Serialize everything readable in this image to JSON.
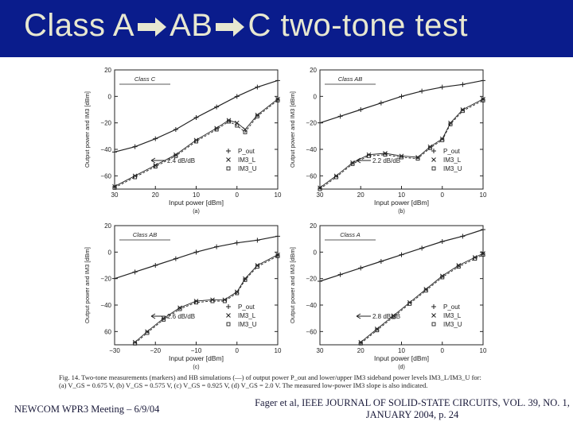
{
  "slide": {
    "title_part1": "Class A",
    "title_part2": "AB",
    "title_part3": "C two-tone test",
    "footer_left": "NEWCOM WPR3 Meeting – 6/9/04",
    "footer_right_line1": "Fager et al, IEEE JOURNAL OF SOLID-STATE CIRCUITS, VOL. 39, NO. 1,",
    "footer_right_line2": "JANUARY 2004, p. 24",
    "caption_line1": "Fig. 14. Two-tone measurements (markers) and HB simulations (—) of output power P_out and lower/upper IM3 sideband power levels IM3_L/IM3_U for:",
    "caption_line2": "(a) V_GS = 0.675 V, (b) V_GS = 0.575 V, (c) V_GS = 0.925 V, (d) V_GS = 2.0 V. The measured low-power IM3 slope is also indicated.",
    "colors": {
      "title_bg": "#0a1c8c",
      "title_fg": "#e8e8d0"
    }
  },
  "chart_data": [
    {
      "type": "line",
      "panel_label": "(a)",
      "inset_label": "Class C",
      "slope_label": "2.4 dB/dB",
      "xlabel": "Input power [dBm]",
      "ylabel": "Output power and IM3 [dBm]",
      "xlim": [
        -30,
        10
      ],
      "ylim": [
        -70,
        20
      ],
      "xticks": [
        "30",
        "20",
        "10",
        "0",
        "10"
      ],
      "yticks": [
        "20",
        "0",
        "−20",
        "−40",
        "−60"
      ],
      "legend": [
        "P_out",
        "IM3_L",
        "IM3_U"
      ],
      "series": [
        {
          "name": "P_out",
          "x": [
            -30,
            -25,
            -20,
            -15,
            -10,
            -5,
            0,
            5,
            10
          ],
          "y": [
            -42,
            -38,
            -32,
            -25,
            -16,
            -8,
            0,
            7,
            12
          ]
        },
        {
          "name": "IM3_L",
          "x": [
            -30,
            -25,
            -20,
            -15,
            -10,
            -5,
            -2,
            0,
            2,
            5,
            10
          ],
          "y": [
            -68,
            -60,
            -52,
            -44,
            -33,
            -24,
            -18,
            -20,
            -25,
            -14,
            -2
          ]
        },
        {
          "name": "IM3_U",
          "x": [
            -30,
            -25,
            -20,
            -15,
            -10,
            -5,
            -2,
            0,
            2,
            5,
            10
          ],
          "y": [
            -69,
            -61,
            -53,
            -45,
            -34,
            -25,
            -19,
            -22,
            -27,
            -15,
            -3
          ]
        }
      ]
    },
    {
      "type": "line",
      "panel_label": "(b)",
      "inset_label": "Class AB",
      "slope_label": "2.2 dB/dB",
      "xlabel": "Input power [dBm]",
      "ylabel": "Output power and IM3 [dBm]",
      "xlim": [
        -30,
        10
      ],
      "ylim": [
        -70,
        20
      ],
      "xticks": [
        "30",
        "20",
        "10",
        "0",
        "10"
      ],
      "yticks": [
        "20",
        "0",
        "−20",
        "−40",
        "−60"
      ],
      "legend": [
        "P_out",
        "IM3_L",
        "IM3_U"
      ],
      "series": [
        {
          "name": "P_out",
          "x": [
            -30,
            -25,
            -20,
            -15,
            -10,
            -5,
            0,
            5,
            10
          ],
          "y": [
            -20,
            -15,
            -10,
            -5,
            0,
            4,
            7,
            9,
            12
          ]
        },
        {
          "name": "IM3_L",
          "x": [
            -30,
            -26,
            -22,
            -18,
            -14,
            -10,
            -6,
            -3,
            0,
            2,
            5,
            10
          ],
          "y": [
            -69,
            -60,
            -50,
            -44,
            -43,
            -45,
            -46,
            -38,
            -32,
            -20,
            -10,
            -2
          ]
        },
        {
          "name": "IM3_U",
          "x": [
            -30,
            -26,
            -22,
            -18,
            -14,
            -10,
            -6,
            -3,
            0,
            2,
            5,
            10
          ],
          "y": [
            -70,
            -61,
            -51,
            -45,
            -44,
            -46,
            -47,
            -39,
            -33,
            -21,
            -11,
            -3
          ]
        }
      ]
    },
    {
      "type": "line",
      "panel_label": "(c)",
      "inset_label": "Class AB",
      "slope_label": "2.6 dB/dB",
      "xlabel": "Input power [dBm]",
      "ylabel": "Output power and IM3 [dBm]",
      "xlim": [
        -30,
        10
      ],
      "ylim": [
        -70,
        20
      ],
      "xticks": [
        "−30",
        "−20",
        "−10",
        "0",
        "10"
      ],
      "yticks": [
        "20",
        "0",
        "−20",
        "−40",
        "60"
      ],
      "legend": [
        "P_out",
        "IM3_L",
        "IM3_U"
      ],
      "series": [
        {
          "name": "P_out",
          "x": [
            -30,
            -25,
            -20,
            -15,
            -10,
            -5,
            0,
            5,
            10
          ],
          "y": [
            -20,
            -15,
            -10,
            -5,
            0,
            4,
            7,
            9,
            12
          ]
        },
        {
          "name": "IM3_L",
          "x": [
            -25,
            -22,
            -18,
            -14,
            -10,
            -6,
            -3,
            0,
            2,
            5,
            10
          ],
          "y": [
            -68,
            -60,
            -50,
            -42,
            -37,
            -36,
            -36,
            -30,
            -20,
            -10,
            -2
          ]
        },
        {
          "name": "IM3_U",
          "x": [
            -25,
            -22,
            -18,
            -14,
            -10,
            -6,
            -3,
            0,
            2,
            5,
            10
          ],
          "y": [
            -69,
            -61,
            -51,
            -43,
            -38,
            -37,
            -37,
            -31,
            -21,
            -11,
            -3
          ]
        }
      ]
    },
    {
      "type": "line",
      "panel_label": "(d)",
      "inset_label": "Class A",
      "slope_label": "2.8 dB/dB",
      "xlabel": "Input power [dBm]",
      "ylabel": "Output power and IM3 [dBm]",
      "xlim": [
        -30,
        10
      ],
      "ylim": [
        -70,
        20
      ],
      "xticks": [
        "30",
        "20",
        "10",
        "0",
        "10"
      ],
      "yticks": [
        "20",
        "0",
        "−20",
        "−40",
        "−60"
      ],
      "legend": [
        "P_out",
        "IM3_L",
        "IM3_U"
      ],
      "series": [
        {
          "name": "P_out",
          "x": [
            -30,
            -25,
            -20,
            -15,
            -10,
            -5,
            0,
            5,
            10
          ],
          "y": [
            -22,
            -17,
            -12,
            -7,
            -2,
            3,
            8,
            12,
            17
          ]
        },
        {
          "name": "IM3_L",
          "x": [
            -20,
            -16,
            -12,
            -8,
            -4,
            0,
            4,
            8,
            10
          ],
          "y": [
            -68,
            -58,
            -48,
            -38,
            -28,
            -18,
            -10,
            -4,
            -1
          ]
        },
        {
          "name": "IM3_U",
          "x": [
            -20,
            -16,
            -12,
            -8,
            -4,
            0,
            4,
            8,
            10
          ],
          "y": [
            -69,
            -59,
            -49,
            -39,
            -29,
            -19,
            -11,
            -5,
            -2
          ]
        }
      ]
    }
  ]
}
